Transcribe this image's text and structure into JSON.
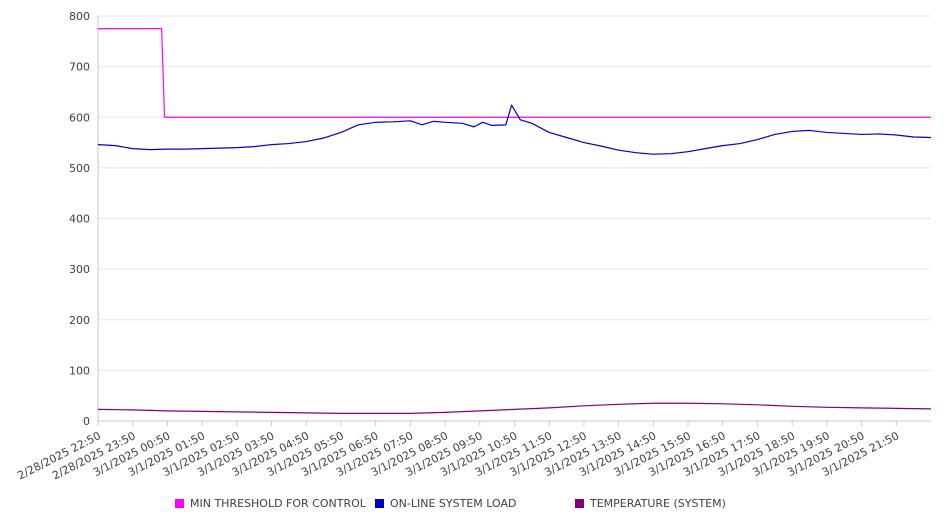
{
  "chart_data": {
    "type": "line",
    "title": "",
    "xlabel": "",
    "ylabel": "",
    "ylim": [
      0,
      800
    ],
    "y_ticks": [
      0,
      100,
      200,
      300,
      400,
      500,
      600,
      700,
      800
    ],
    "grid": "horizontal",
    "legend_position": "bottom",
    "x_tick_labels": [
      "2/28/2025 22:50",
      "2/28/2025 23:50",
      "3/1/2025 00:50",
      "3/1/2025 01:50",
      "3/1/2025 02:50",
      "3/1/2025 03:50",
      "3/1/2025 04:50",
      "3/1/2025 05:50",
      "3/1/2025 06:50",
      "3/1/2025 07:50",
      "3/1/2025 08:50",
      "3/1/2025 09:50",
      "3/1/2025 10:50",
      "3/1/2025 11:50",
      "3/1/2025 12:50",
      "3/1/2025 13:50",
      "3/1/2025 14:50",
      "3/1/2025 15:50",
      "3/1/2025 16:50",
      "3/1/2025 17:50",
      "3/1/2025 18:50",
      "3/1/2025 19:50",
      "3/1/2025 20:50",
      "3/1/2025 21:50"
    ],
    "x_range": [
      "2/28/2025 22:50",
      "3/1/2025 22:50"
    ],
    "series": [
      {
        "name": "MIN THRESHOLD FOR CONTROL",
        "color": "#ff00ff",
        "points": [
          [
            "2/28/2025 22:50",
            775
          ],
          [
            "3/1/2025 00:40",
            775
          ],
          [
            "3/1/2025 00:45",
            600
          ],
          [
            "3/1/2025 22:50",
            600
          ]
        ]
      },
      {
        "name": "ON-LINE SYSTEM LOAD",
        "color": "#0000cc",
        "points": [
          [
            "2/28/2025 22:50",
            546
          ],
          [
            "2/28/2025 23:20",
            544
          ],
          [
            "2/28/2025 23:50",
            538
          ],
          [
            "3/1/2025 00:20",
            536
          ],
          [
            "3/1/2025 00:50",
            537
          ],
          [
            "3/1/2025 01:20",
            537
          ],
          [
            "3/1/2025 01:50",
            538
          ],
          [
            "3/1/2025 02:20",
            539
          ],
          [
            "3/1/2025 02:50",
            540
          ],
          [
            "3/1/2025 03:20",
            542
          ],
          [
            "3/1/2025 03:50",
            546
          ],
          [
            "3/1/2025 04:20",
            548
          ],
          [
            "3/1/2025 04:50",
            552
          ],
          [
            "3/1/2025 05:20",
            559
          ],
          [
            "3/1/2025 05:50",
            570
          ],
          [
            "3/1/2025 06:20",
            585
          ],
          [
            "3/1/2025 06:50",
            590
          ],
          [
            "3/1/2025 07:20",
            591
          ],
          [
            "3/1/2025 07:50",
            593
          ],
          [
            "3/1/2025 08:10",
            585
          ],
          [
            "3/1/2025 08:30",
            592
          ],
          [
            "3/1/2025 08:50",
            590
          ],
          [
            "3/1/2025 09:20",
            588
          ],
          [
            "3/1/2025 09:40",
            581
          ],
          [
            "3/1/2025 09:55",
            590
          ],
          [
            "3/1/2025 10:10",
            584
          ],
          [
            "3/1/2025 10:35",
            585
          ],
          [
            "3/1/2025 10:45",
            624
          ],
          [
            "3/1/2025 11:00",
            595
          ],
          [
            "3/1/2025 11:20",
            588
          ],
          [
            "3/1/2025 11:50",
            570
          ],
          [
            "3/1/2025 12:20",
            560
          ],
          [
            "3/1/2025 12:50",
            550
          ],
          [
            "3/1/2025 13:20",
            543
          ],
          [
            "3/1/2025 13:50",
            535
          ],
          [
            "3/1/2025 14:20",
            530
          ],
          [
            "3/1/2025 14:50",
            527
          ],
          [
            "3/1/2025 15:20",
            528
          ],
          [
            "3/1/2025 15:50",
            532
          ],
          [
            "3/1/2025 16:20",
            538
          ],
          [
            "3/1/2025 16:50",
            544
          ],
          [
            "3/1/2025 17:20",
            548
          ],
          [
            "3/1/2025 17:50",
            556
          ],
          [
            "3/1/2025 18:20",
            566
          ],
          [
            "3/1/2025 18:50",
            572
          ],
          [
            "3/1/2025 19:20",
            574
          ],
          [
            "3/1/2025 19:50",
            570
          ],
          [
            "3/1/2025 20:20",
            568
          ],
          [
            "3/1/2025 20:50",
            566
          ],
          [
            "3/1/2025 21:20",
            567
          ],
          [
            "3/1/2025 21:50",
            565
          ],
          [
            "3/1/2025 22:20",
            561
          ],
          [
            "3/1/2025 22:50",
            560
          ]
        ]
      },
      {
        "name": "TEMPERATURE (SYSTEM)",
        "color": "#800080",
        "points": [
          [
            "2/28/2025 22:50",
            23
          ],
          [
            "2/28/2025 23:50",
            22
          ],
          [
            "3/1/2025 00:50",
            20
          ],
          [
            "3/1/2025 01:50",
            19
          ],
          [
            "3/1/2025 02:50",
            18
          ],
          [
            "3/1/2025 03:50",
            17
          ],
          [
            "3/1/2025 04:50",
            16
          ],
          [
            "3/1/2025 05:50",
            15
          ],
          [
            "3/1/2025 06:50",
            15
          ],
          [
            "3/1/2025 07:50",
            15
          ],
          [
            "3/1/2025 08:50",
            17
          ],
          [
            "3/1/2025 09:50",
            20
          ],
          [
            "3/1/2025 10:50",
            23
          ],
          [
            "3/1/2025 11:50",
            26
          ],
          [
            "3/1/2025 12:50",
            30
          ],
          [
            "3/1/2025 13:50",
            33
          ],
          [
            "3/1/2025 14:50",
            35
          ],
          [
            "3/1/2025 15:50",
            35
          ],
          [
            "3/1/2025 16:50",
            34
          ],
          [
            "3/1/2025 17:50",
            32
          ],
          [
            "3/1/2025 18:50",
            29
          ],
          [
            "3/1/2025 19:50",
            27
          ],
          [
            "3/1/2025 20:50",
            26
          ],
          [
            "3/1/2025 21:50",
            25
          ],
          [
            "3/1/2025 22:50",
            24
          ]
        ]
      }
    ]
  },
  "legend": {
    "items": [
      {
        "label": "MIN THRESHOLD FOR CONTROL",
        "color": "#ff00ff"
      },
      {
        "label": "ON-LINE SYSTEM LOAD",
        "color": "#0000cc"
      },
      {
        "label": "TEMPERATURE (SYSTEM)",
        "color": "#800080"
      }
    ]
  }
}
